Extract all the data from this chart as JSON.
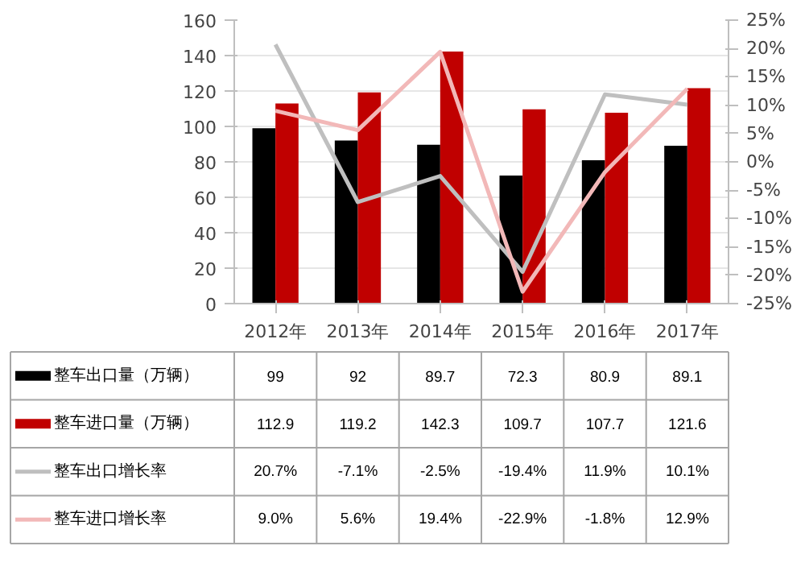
{
  "chart_data": {
    "type": "bar",
    "categories": [
      "2012年",
      "2013年",
      "2014年",
      "2015年",
      "2016年",
      "2017年"
    ],
    "series": [
      {
        "name": "整车出口量（万辆）",
        "color": "#000000",
        "values": [
          99,
          92,
          89.7,
          72.3,
          80.9,
          89.1
        ],
        "value_labels": [
          "99",
          "92",
          "89.7",
          "72.3",
          "80.9",
          "89.1"
        ]
      },
      {
        "name": "整车进口量（万辆）",
        "color": "#c00000",
        "values": [
          112.9,
          119.2,
          142.3,
          109.7,
          107.7,
          121.6
        ],
        "value_labels": [
          "112.9",
          "119.2",
          "142.3",
          "109.7",
          "107.7",
          "121.6"
        ]
      },
      {
        "name": "整车出口增长率",
        "type": "line",
        "axis": "y2",
        "color": "#bfbfbf",
        "values": [
          20.7,
          -7.1,
          -2.5,
          -19.4,
          11.9,
          10.1
        ],
        "value_labels": [
          "20.7%",
          "-7.1%",
          "-2.5%",
          "-19.4%",
          "11.9%",
          "10.1%"
        ]
      },
      {
        "name": "整车进口增长率",
        "type": "line",
        "axis": "y2",
        "color": "#f2b8b8",
        "values": [
          9.0,
          5.6,
          19.4,
          -22.9,
          -1.8,
          12.9
        ],
        "value_labels": [
          "9.0%",
          "5.6%",
          "19.4%",
          "-22.9%",
          "-1.8%",
          "12.9%"
        ]
      }
    ],
    "ylim": [
      0,
      160
    ],
    "yticks": [
      0,
      20,
      40,
      60,
      80,
      100,
      120,
      140,
      160
    ],
    "y2lim": [
      -25,
      25
    ],
    "y2ticks": [
      {
        "value": -25,
        "label": "-25%"
      },
      {
        "value": -20,
        "label": "-20%"
      },
      {
        "value": -15,
        "label": "-15%"
      },
      {
        "value": -10,
        "label": "-10%"
      },
      {
        "value": -5,
        "label": "-5%"
      },
      {
        "value": 0,
        "label": "0%"
      },
      {
        "value": 5,
        "label": "5%"
      },
      {
        "value": 10,
        "label": "10%"
      },
      {
        "value": 15,
        "label": "15%"
      },
      {
        "value": 20,
        "label": "20%"
      },
      {
        "value": 25,
        "label": "25%"
      }
    ],
    "grid": "y",
    "legend": "bottom"
  }
}
